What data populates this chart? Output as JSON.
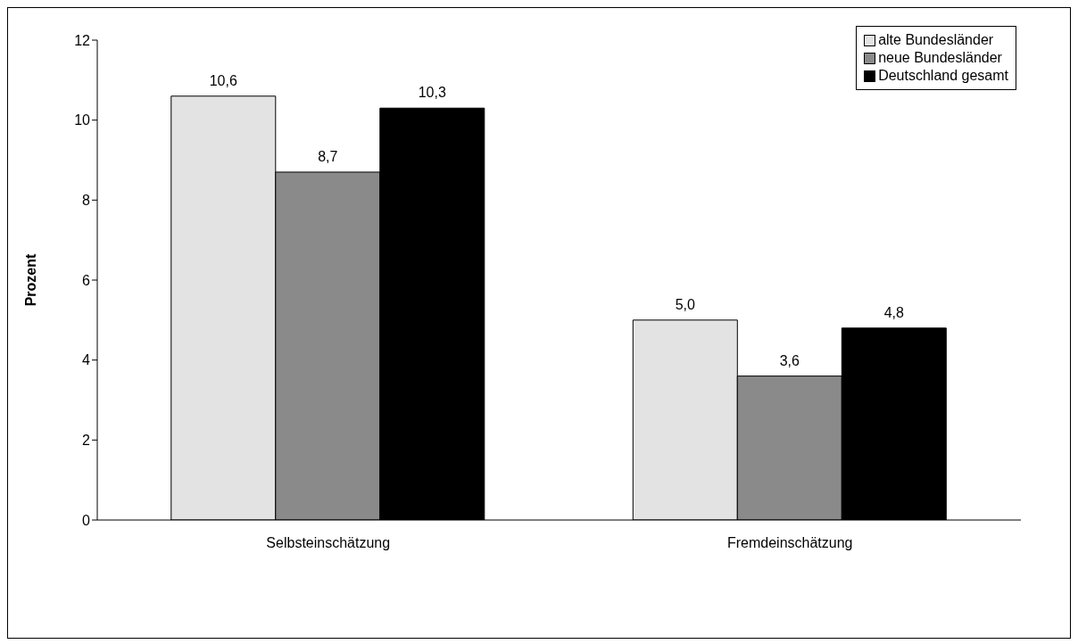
{
  "chart_data": {
    "type": "bar",
    "ylabel": "Prozent",
    "categories": [
      "Selbsteinschätzung",
      "Fremdeinschätzung"
    ],
    "series": [
      {
        "name": "alte Bundesländer",
        "color": "#e3e3e3",
        "values": [
          10.6,
          5.0
        ],
        "value_labels": [
          "10,6",
          "5,0"
        ]
      },
      {
        "name": "neue Bundesländer",
        "color": "#8a8a8a",
        "values": [
          8.7,
          3.6
        ],
        "value_labels": [
          "8,7",
          "3,6"
        ]
      },
      {
        "name": "Deutschland gesamt",
        "color": "#000000",
        "values": [
          10.3,
          4.8
        ],
        "value_labels": [
          "10,3",
          "4,8"
        ]
      }
    ],
    "ylim": [
      0,
      12
    ],
    "yticks": [
      0,
      2,
      4,
      6,
      8,
      10,
      12
    ],
    "legend": "top right"
  }
}
